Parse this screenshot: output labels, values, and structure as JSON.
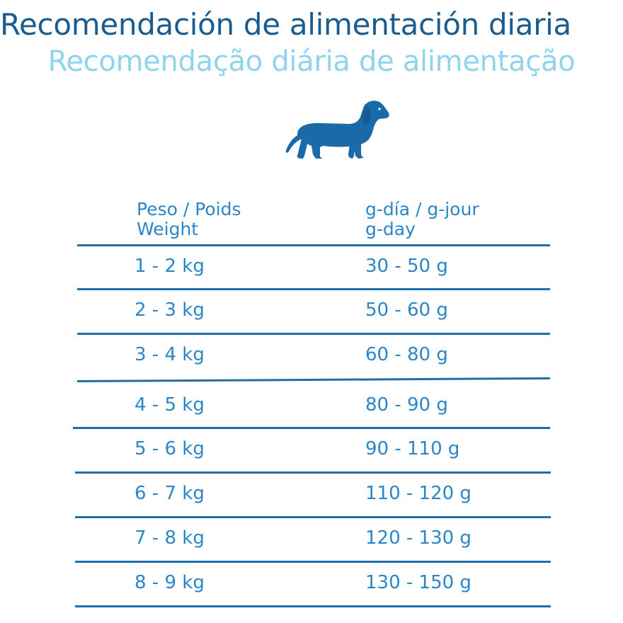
{
  "titles": {
    "spanish": "Recomendación de alimentación diaria",
    "portuguese": "Recomendação diária de alimentação"
  },
  "icon": "dachshund-icon",
  "colors": {
    "title_primary": "#1a5c8f",
    "title_secondary": "#8fd4ee",
    "table_text": "#2a86c8",
    "rules": "#1f6fad",
    "dog": "#1a6aa8"
  },
  "table": {
    "header_weight": [
      "Peso / Poids",
      "Weight"
    ],
    "header_amount": [
      "g-día /  g-jour",
      "g-day"
    ],
    "rows": [
      {
        "weight": "1 - 2 kg",
        "amount": "30 - 50 g"
      },
      {
        "weight": "2 - 3 kg",
        "amount": "50 - 60 g"
      },
      {
        "weight": "3 - 4 kg",
        "amount": "60 - 80 g"
      },
      {
        "weight": "4 - 5 kg",
        "amount": "80 - 90 g"
      },
      {
        "weight": "5 - 6 kg",
        "amount": "90 - 110 g"
      },
      {
        "weight": "6 - 7 kg",
        "amount": "110 - 120 g"
      },
      {
        "weight": "7 - 8 kg",
        "amount": "120 - 130 g"
      },
      {
        "weight": "8 - 9 kg",
        "amount": "130 - 150 g"
      }
    ]
  }
}
